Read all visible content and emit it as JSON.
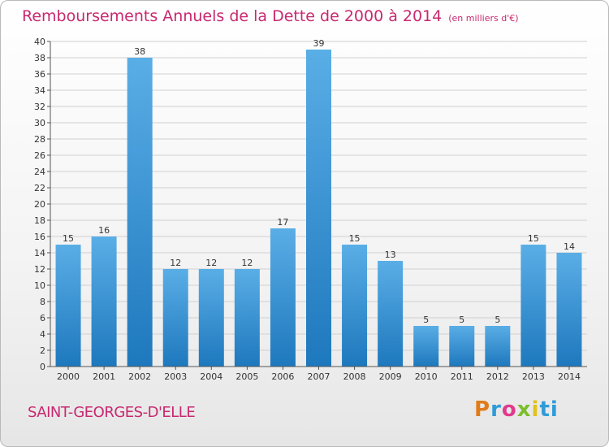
{
  "title": "Remboursements Annuels de la Dette de 2000 à 2014",
  "unit_note": "(en milliers d'€)",
  "town_name": "SAINT-GEORGES-D'ELLE",
  "brand": [
    "P",
    "r",
    "o",
    "x",
    "i",
    "ti"
  ],
  "colors": {
    "title": "#c8286f",
    "bar_light": "#5aaee6",
    "bar_dark": "#1e78bd"
  },
  "chart_data": {
    "type": "bar",
    "title": "Remboursements Annuels de la Dette de 2000 à 2014",
    "categories": [
      "2000",
      "2001",
      "2002",
      "2003",
      "2004",
      "2005",
      "2006",
      "2007",
      "2008",
      "2009",
      "2010",
      "2011",
      "2012",
      "2013",
      "2014"
    ],
    "values": [
      15,
      16,
      38,
      12,
      12,
      12,
      17,
      39,
      15,
      13,
      5,
      5,
      5,
      15,
      14
    ],
    "xlabel": "",
    "ylabel": "",
    "ylim": [
      0,
      40
    ],
    "ytick_step": 2,
    "grid": true
  }
}
